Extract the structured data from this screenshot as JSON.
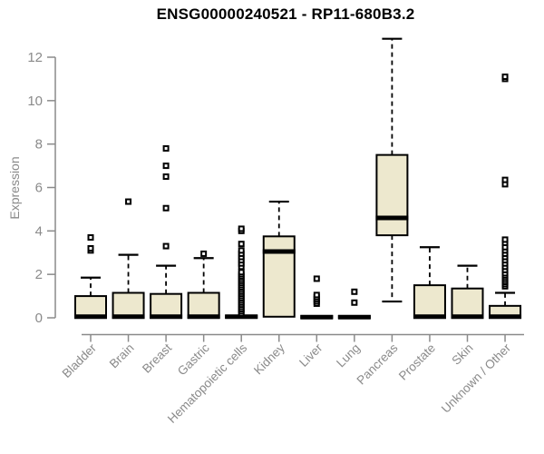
{
  "title": "ENSG00000240521 - RP11-680B3.2",
  "colors": {
    "background": "#ffffff",
    "box_fill": "#ede8ce",
    "box_stroke": "#000000",
    "median": "#000000",
    "outlier": "#000000",
    "axis": "#8a8a8a",
    "title_text": "#000000"
  },
  "chart_data": {
    "type": "boxplot",
    "title": "ENSG00000240521 - RP11-680B3.2",
    "xlabel": "",
    "ylabel": "Expression",
    "ylim": [
      0,
      12
    ],
    "yticks": [
      0,
      2,
      4,
      6,
      8,
      10,
      12
    ],
    "grid": false,
    "legend": "none",
    "categories": [
      "Bladder",
      "Brain",
      "Breast",
      "Gastric",
      "Hematopoietic cells",
      "Kidney",
      "Liver",
      "Lung",
      "Pancreas",
      "Prostate",
      "Skin",
      "Unknown / Other"
    ],
    "series": [
      {
        "name": "Bladder",
        "whisker_low": 0,
        "q1": 0,
        "median": 0.05,
        "q3": 1.0,
        "whisker_high": 1.85,
        "outliers": [
          3.1,
          3.2,
          3.7
        ]
      },
      {
        "name": "Brain",
        "whisker_low": 0,
        "q1": 0,
        "median": 0.05,
        "q3": 1.15,
        "whisker_high": 2.9,
        "outliers": [
          5.35
        ]
      },
      {
        "name": "Breast",
        "whisker_low": 0,
        "q1": 0,
        "median": 0.05,
        "q3": 1.1,
        "whisker_high": 2.4,
        "outliers": [
          3.3,
          5.05,
          6.5,
          7.0,
          7.8
        ]
      },
      {
        "name": "Gastric",
        "whisker_low": 0,
        "q1": 0,
        "median": 0.05,
        "q3": 1.15,
        "whisker_high": 2.75,
        "outliers": [
          2.95
        ]
      },
      {
        "name": "Hematopoietic cells",
        "whisker_low": 0,
        "q1": 0,
        "median": 0.05,
        "q3": 0.1,
        "whisker_high": 0.15,
        "outliers": [
          0.2,
          0.3,
          0.4,
          0.5,
          0.6,
          0.7,
          0.8,
          0.9,
          1.0,
          1.1,
          1.2,
          1.3,
          1.4,
          1.5,
          1.6,
          1.7,
          1.8,
          1.9,
          2.0,
          2.1,
          2.35,
          2.5,
          2.65,
          2.8,
          2.95,
          3.1,
          3.4,
          4.0,
          4.1
        ]
      },
      {
        "name": "Kidney",
        "whisker_low": 0.05,
        "q1": 0.05,
        "median": 3.05,
        "q3": 3.75,
        "whisker_high": 5.35,
        "outliers": []
      },
      {
        "name": "Liver",
        "whisker_low": 0,
        "q1": 0,
        "median": 0.03,
        "q3": 0.08,
        "whisker_high": 0.1,
        "outliers": [
          0.65,
          0.75,
          0.85,
          0.95,
          1.05,
          1.8
        ]
      },
      {
        "name": "Lung",
        "whisker_low": 0,
        "q1": 0,
        "median": 0.03,
        "q3": 0.08,
        "whisker_high": 0.1,
        "outliers": [
          0.7,
          1.2
        ]
      },
      {
        "name": "Pancreas",
        "whisker_low": 0.75,
        "q1": 3.8,
        "median": 4.6,
        "q3": 7.5,
        "whisker_high": 12.85,
        "outliers": []
      },
      {
        "name": "Prostate",
        "whisker_low": 0,
        "q1": 0,
        "median": 0.05,
        "q3": 1.5,
        "whisker_high": 3.25,
        "outliers": []
      },
      {
        "name": "Skin",
        "whisker_low": 0,
        "q1": 0,
        "median": 0.05,
        "q3": 1.35,
        "whisker_high": 2.4,
        "outliers": []
      },
      {
        "name": "Unknown / Other",
        "whisker_low": 0,
        "q1": 0,
        "median": 0.05,
        "q3": 0.55,
        "whisker_high": 1.15,
        "outliers": [
          1.45,
          1.55,
          1.65,
          1.75,
          1.85,
          1.95,
          2.05,
          2.2,
          2.35,
          2.5,
          2.65,
          2.8,
          2.95,
          3.1,
          3.25,
          3.45,
          3.6,
          6.15,
          6.35,
          11.0,
          11.1
        ]
      }
    ]
  }
}
